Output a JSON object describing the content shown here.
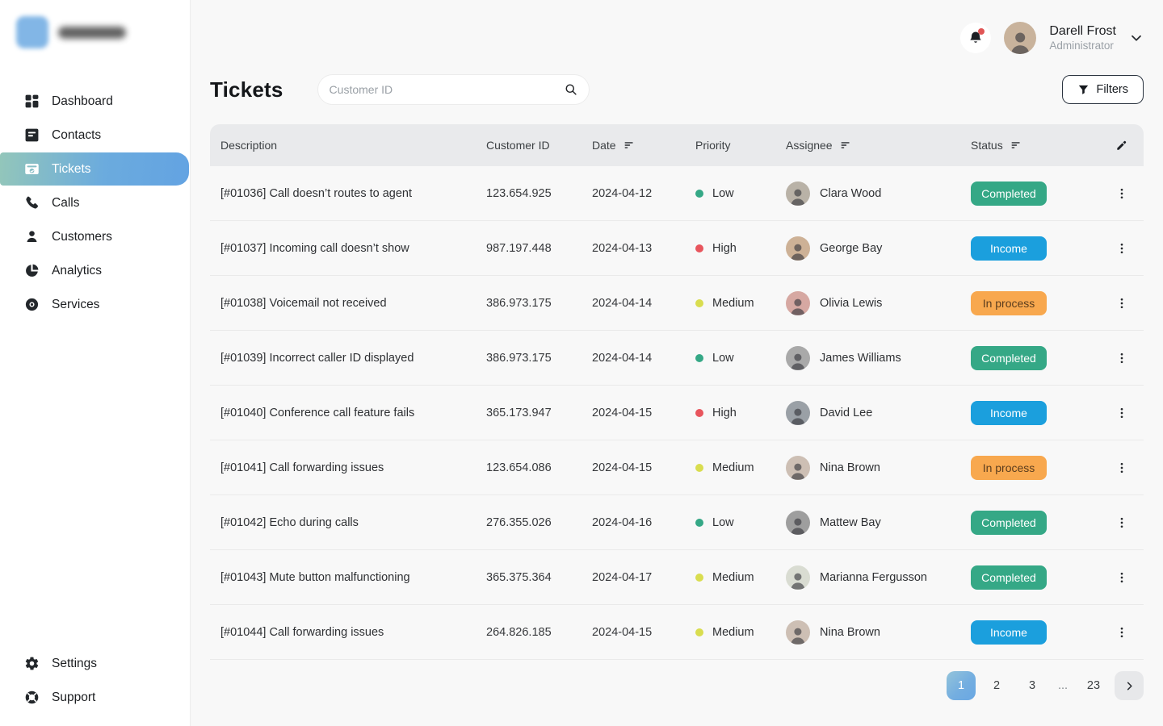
{
  "sidebar": {
    "nav": [
      {
        "label": "Dashboard",
        "icon": "dashboard-grid-icon",
        "active": false
      },
      {
        "label": "Contacts",
        "icon": "contacts-icon",
        "active": false
      },
      {
        "label": "Tickets",
        "icon": "ticket-icon",
        "active": true
      },
      {
        "label": "Calls",
        "icon": "phone-icon",
        "active": false
      },
      {
        "label": "Customers",
        "icon": "person-icon",
        "active": false
      },
      {
        "label": "Analytics",
        "icon": "pie-chart-icon",
        "active": false
      },
      {
        "label": "Services",
        "icon": "services-icon",
        "active": false
      }
    ],
    "footer": [
      {
        "label": "Settings",
        "icon": "gear-icon",
        "active": false
      },
      {
        "label": "Support",
        "icon": "lifebuoy-icon",
        "active": false
      }
    ]
  },
  "header": {
    "user": {
      "name": "Darell Frost",
      "role": "Administrator"
    },
    "icons": {
      "notifications": "bell-icon",
      "user_menu": "chevron-down-icon"
    }
  },
  "main": {
    "title": "Tickets",
    "search_placeholder": "Customer ID",
    "search_value": "",
    "filters_label": "Filters",
    "icons": {
      "search": "search-icon",
      "filters": "filter-icon"
    }
  },
  "table": {
    "columns": [
      {
        "label": "Description",
        "sortable": false
      },
      {
        "label": "Customer ID",
        "sortable": false
      },
      {
        "label": "Date",
        "sortable": true
      },
      {
        "label": "Priority",
        "sortable": false
      },
      {
        "label": "Assignee",
        "sortable": true
      },
      {
        "label": "Status",
        "sortable": true
      }
    ],
    "icons": {
      "sort": "sort-icon",
      "edit": "pencil-icon",
      "row_menu": "kebab-icon"
    },
    "rows": [
      {
        "description": "[#01036] Call doesn’t routes to agent",
        "customer_id": "123.654.925",
        "date": "2024-04-12",
        "priority": "Low",
        "assignee": "Clara Wood",
        "status": "Completed",
        "avatar_color": "#b9b2a7"
      },
      {
        "description": "[#01037] Incoming call doesn’t show",
        "customer_id": "987.197.448",
        "date": "2024-04-13",
        "priority": "High",
        "assignee": "George Bay",
        "status": "Income",
        "avatar_color": "#cdb196"
      },
      {
        "description": "[#01038] Voicemail not received",
        "customer_id": "386.973.175",
        "date": "2024-04-14",
        "priority": "Medium",
        "assignee": "Olivia Lewis",
        "status": "In process",
        "avatar_color": "#d6a8a2"
      },
      {
        "description": "[#01039] Incorrect caller ID displayed",
        "customer_id": "386.973.175",
        "date": "2024-04-14",
        "priority": "Low",
        "assignee": "James Williams",
        "status": "Completed",
        "avatar_color": "#a9a9a9"
      },
      {
        "description": "[#01040] Conference call feature fails",
        "customer_id": "365.173.947",
        "date": "2024-04-15",
        "priority": "High",
        "assignee": "David Lee",
        "status": "Income",
        "avatar_color": "#9aa0a6"
      },
      {
        "description": "[#01041] Call forwarding issues",
        "customer_id": "123.654.086",
        "date": "2024-04-15",
        "priority": "Medium",
        "assignee": "Nina Brown",
        "status": "In process",
        "avatar_color": "#cdbfb4"
      },
      {
        "description": "[#01042] Echo during calls",
        "customer_id": "276.355.026",
        "date": "2024-04-16",
        "priority": "Low",
        "assignee": "Mattew Bay",
        "status": "Completed",
        "avatar_color": "#9e9e9e"
      },
      {
        "description": "[#01043] Mute button malfunctioning",
        "customer_id": "365.375.364",
        "date": "2024-04-17",
        "priority": "Medium",
        "assignee": "Marianna Fergusson",
        "status": "Completed",
        "avatar_color": "#d9dcd2"
      },
      {
        "description": "[#01044] Call forwarding issues",
        "customer_id": "264.826.185",
        "date": "2024-04-15",
        "priority": "Medium",
        "assignee": "Nina Brown",
        "status": "Income",
        "avatar_color": "#cdbfb4"
      }
    ]
  },
  "pagination": {
    "pages": [
      "1",
      "2",
      "3",
      "...",
      "23"
    ],
    "active_page": "1",
    "next_icon": "chevron-right-icon"
  },
  "colors": {
    "priority": {
      "Low": "#35a886",
      "High": "#e8555d",
      "Medium": "#d9dd4f"
    },
    "status": {
      "Completed": {
        "bg": "#35a886",
        "text": "#ffffff"
      },
      "Income": {
        "bg": "#1b9fdd",
        "text": "#ffffff"
      },
      "In process": {
        "bg": "#f8a84e",
        "text": "#5b3d1e"
      }
    },
    "accent_gradient": [
      "#93c6ba",
      "#63a3e2"
    ],
    "notification_dot": "#e05555"
  }
}
